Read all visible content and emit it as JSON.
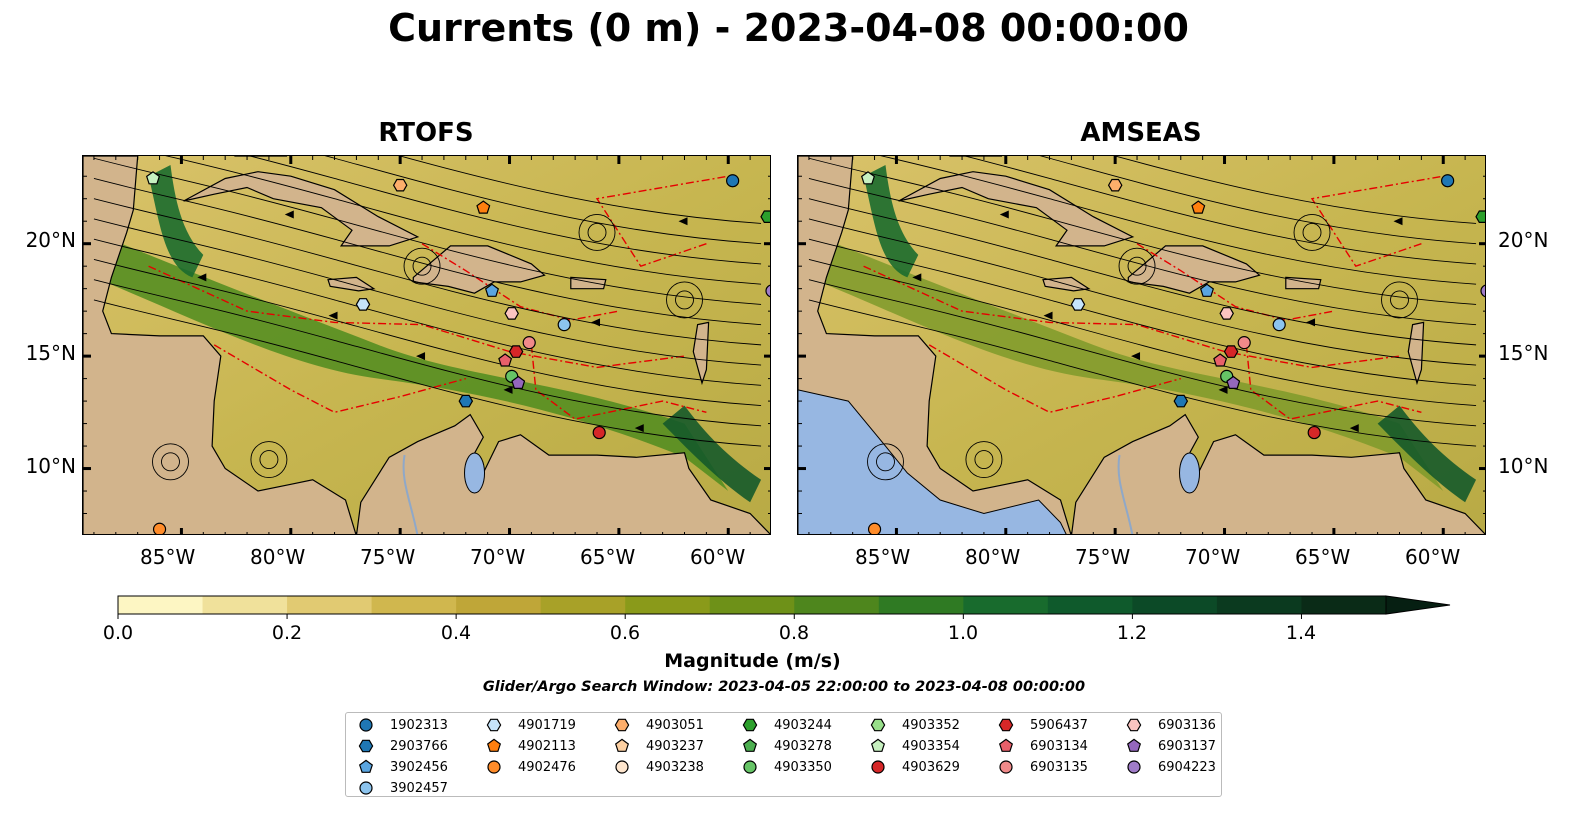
{
  "title": "Currents (0 m) - 2023-04-08 00:00:00",
  "panels": [
    {
      "title": "RTOFS"
    },
    {
      "title": "AMSEAS"
    }
  ],
  "lon_labels": [
    "85°W",
    "80°W",
    "75°W",
    "70°W",
    "65°W",
    "60°W"
  ],
  "lat_labels": [
    "20°N",
    "15°N",
    "10°N"
  ],
  "map_extent": {
    "lon": [
      -89.5,
      -58.0
    ],
    "lat": [
      7.0,
      23.9
    ]
  },
  "colorbar": {
    "title": "Magnitude (m/s)",
    "ticks": [
      "0.0",
      "0.2",
      "0.4",
      "0.6",
      "0.8",
      "1.0",
      "1.2",
      "1.4"
    ],
    "range": [
      0.0,
      1.5
    ],
    "extend": "max",
    "colors": [
      "#fdf6c3",
      "#f0e19b",
      "#e1ca72",
      "#d0b74e",
      "#bfa638",
      "#a8a128",
      "#8a9a1a",
      "#6e9118",
      "#4e861d",
      "#2f7a23",
      "#186b2d",
      "#0f5a2c",
      "#0c4a27",
      "#0b3a1f",
      "#0a2b17"
    ]
  },
  "search_window": "Glider/Argo Search Window: 2023-04-05 22:00:00 to 2023-04-08 00:00:00",
  "legend": [
    {
      "id": "1902313",
      "color": "#1f77b4",
      "marker": "circle"
    },
    {
      "id": "2903766",
      "color": "#1f77b4",
      "marker": "hexagon"
    },
    {
      "id": "3902456",
      "color": "#5aa5e0",
      "marker": "pentagon"
    },
    {
      "id": "3902457",
      "color": "#8cc4ee",
      "marker": "circle"
    },
    {
      "id": "4901719",
      "color": "#c6e4fb",
      "marker": "hexagon"
    },
    {
      "id": "4902113",
      "color": "#ff7f0e",
      "marker": "pentagon"
    },
    {
      "id": "4902476",
      "color": "#ff8c2a",
      "marker": "circle"
    },
    {
      "id": "4903051",
      "color": "#fdae6b",
      "marker": "hexagon"
    },
    {
      "id": "4903237",
      "color": "#fdd0a2",
      "marker": "pentagon"
    },
    {
      "id": "4903238",
      "color": "#fee6ce",
      "marker": "circle"
    },
    {
      "id": "4903244",
      "color": "#2ca02c",
      "marker": "hexagon"
    },
    {
      "id": "4903278",
      "color": "#4caf50",
      "marker": "pentagon"
    },
    {
      "id": "4903350",
      "color": "#66c466",
      "marker": "circle"
    },
    {
      "id": "4903352",
      "color": "#98df8a",
      "marker": "hexagon"
    },
    {
      "id": "4903354",
      "color": "#c7f0c0",
      "marker": "pentagon"
    },
    {
      "id": "4903629",
      "color": "#d62728",
      "marker": "circle"
    },
    {
      "id": "5906437",
      "color": "#d62728",
      "marker": "hexagon"
    },
    {
      "id": "6903134",
      "color": "#e8606a",
      "marker": "pentagon"
    },
    {
      "id": "6903135",
      "color": "#f08a8a",
      "marker": "circle"
    },
    {
      "id": "6903136",
      "color": "#fbc4c0",
      "marker": "hexagon"
    },
    {
      "id": "6903137",
      "color": "#9467bd",
      "marker": "pentagon"
    },
    {
      "id": "6904223",
      "color": "#a07cc8",
      "marker": "circle"
    }
  ],
  "floats": [
    {
      "id": "1902313",
      "lon": -59.8,
      "lat": 22.8
    },
    {
      "id": "4903244",
      "lon": -58.2,
      "lat": 21.2
    },
    {
      "id": "4903354",
      "lon": -86.3,
      "lat": 22.9
    },
    {
      "id": "4903051",
      "lon": -75.0,
      "lat": 22.6
    },
    {
      "id": "4902113",
      "lon": -71.2,
      "lat": 21.6
    },
    {
      "id": "3902456",
      "lon": -70.8,
      "lat": 17.9
    },
    {
      "id": "4901719",
      "lon": -76.7,
      "lat": 17.3
    },
    {
      "id": "6903136",
      "lon": -69.9,
      "lat": 16.9
    },
    {
      "id": "3902457",
      "lon": -67.5,
      "lat": 16.4
    },
    {
      "id": "6903135",
      "lon": -69.1,
      "lat": 15.6
    },
    {
      "id": "5906437",
      "lon": -69.7,
      "lat": 15.2
    },
    {
      "id": "6903134",
      "lon": -70.2,
      "lat": 14.8
    },
    {
      "id": "4903350",
      "lon": -69.9,
      "lat": 14.1
    },
    {
      "id": "6903137",
      "lon": -69.6,
      "lat": 13.8
    },
    {
      "id": "2903766",
      "lon": -72.0,
      "lat": 13.0
    },
    {
      "id": "4903629",
      "lon": -65.9,
      "lat": 11.6
    },
    {
      "id": "4902476",
      "lon": -86.0,
      "lat": 7.3
    },
    {
      "id": "6904223",
      "lon": -58.0,
      "lat": 17.9
    }
  ]
}
